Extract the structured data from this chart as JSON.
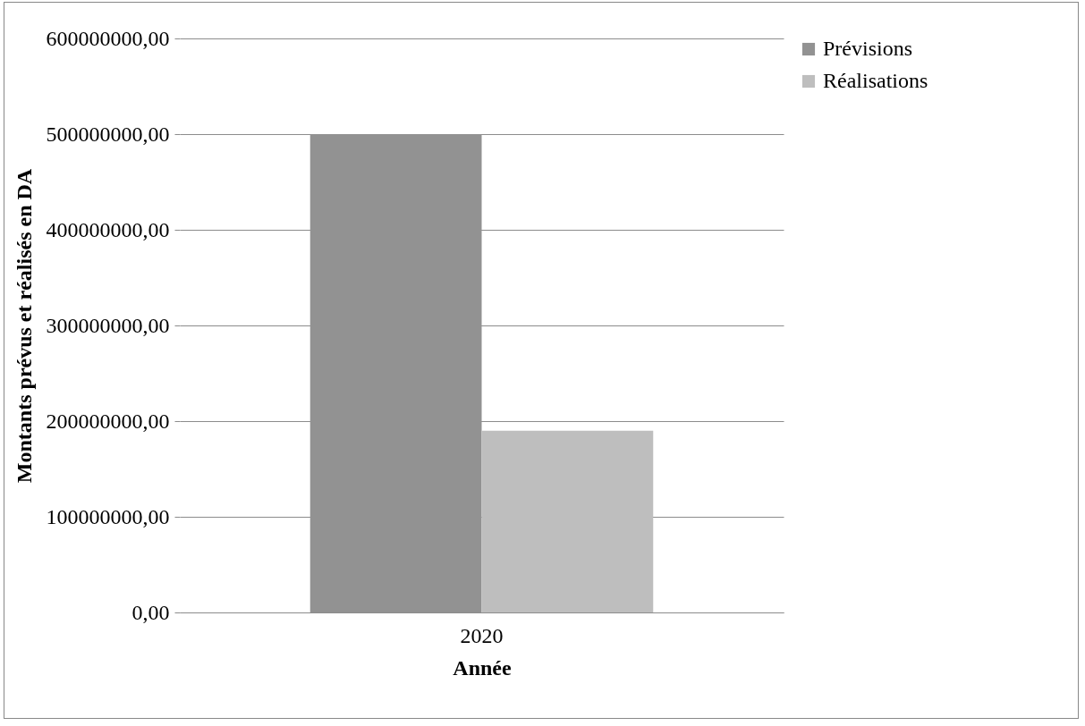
{
  "chart_data": {
    "type": "bar",
    "xlabel": "Année",
    "ylabel": "Montants prévus et réalisés en DA",
    "categories": [
      "2020"
    ],
    "series": [
      {
        "name": "Prévisions",
        "color": "#929292",
        "values": [
          500000000
        ]
      },
      {
        "name": "Réalisations",
        "color": "#bebebe",
        "values": [
          190000000
        ]
      }
    ],
    "ylim": [
      0,
      600000000
    ],
    "yticks": [
      {
        "value": 0,
        "label": "0,00"
      },
      {
        "value": 100000000,
        "label": "100000000,00"
      },
      {
        "value": 200000000,
        "label": "200000000,00"
      },
      {
        "value": 300000000,
        "label": "300000000,00"
      },
      {
        "value": 400000000,
        "label": "400000000,00"
      },
      {
        "value": 500000000,
        "label": "500000000,00"
      },
      {
        "value": 600000000,
        "label": "600000000,00"
      }
    ],
    "grid": "y",
    "legend": "right"
  }
}
